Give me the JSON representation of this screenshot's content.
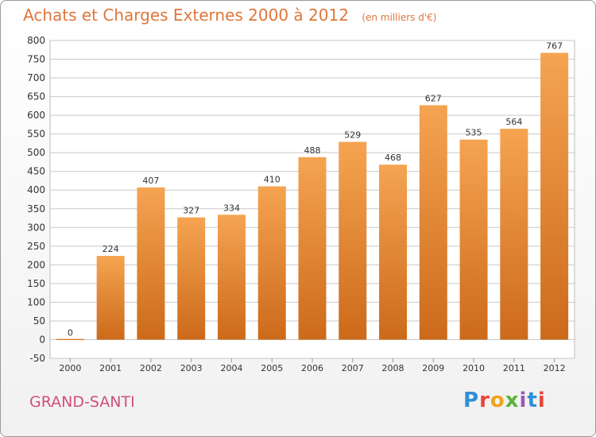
{
  "header": {
    "title": "Achats et Charges Externes 2000 à 2012",
    "unit": "(en milliers d'€)"
  },
  "commune": "GRAND-SANTI",
  "brand": {
    "letters": [
      "P",
      "r",
      "o",
      "x",
      "i",
      "t",
      "i"
    ],
    "colors": [
      "#2f8fd6",
      "#e8463a",
      "#f2a21b",
      "#5bb33b",
      "#9b59b6",
      "#2f8fd6",
      "#e8463a"
    ]
  },
  "colors": {
    "bar_top": "#f5a452",
    "bar_bottom": "#cc6a1a",
    "grid": "#c8c8c8",
    "text": "#333333",
    "title": "#e0763a"
  },
  "chart_data": {
    "type": "bar",
    "categories": [
      "2000",
      "2001",
      "2002",
      "2003",
      "2004",
      "2005",
      "2006",
      "2007",
      "2008",
      "2009",
      "2010",
      "2011",
      "2012"
    ],
    "values": [
      0,
      224,
      407,
      327,
      334,
      410,
      488,
      529,
      468,
      627,
      535,
      564,
      767
    ],
    "ylim": [
      -50,
      800
    ],
    "yticks": [
      -50,
      0,
      50,
      100,
      150,
      200,
      250,
      300,
      350,
      400,
      450,
      500,
      550,
      600,
      650,
      700,
      750,
      800
    ],
    "grid": true,
    "title": "Achats et Charges Externes 2000 à 2012",
    "xlabel": "",
    "ylabel": ""
  }
}
